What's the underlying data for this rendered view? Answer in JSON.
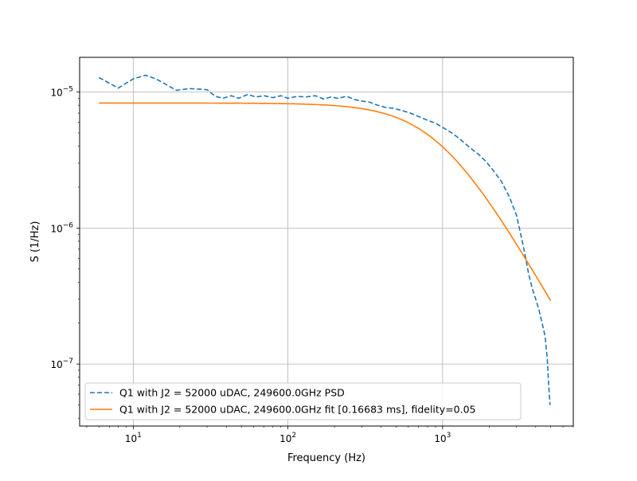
{
  "chart_data": {
    "type": "line",
    "xscale": "log",
    "yscale": "log",
    "xlabel": "Frequency (Hz)",
    "ylabel": "S (1/Hz)",
    "xlim": [
      4.5,
      7000
    ],
    "ylim": [
      3.5e-08,
      1.8e-05
    ],
    "grid": true,
    "legend_position": "lower-left",
    "x_ticks": [
      {
        "value": 10,
        "base": "10",
        "exp": "1"
      },
      {
        "value": 100,
        "base": "10",
        "exp": "2"
      },
      {
        "value": 1000,
        "base": "10",
        "exp": "3"
      }
    ],
    "y_ticks": [
      {
        "value": 1e-07,
        "base": "10",
        "exp": "−7"
      },
      {
        "value": 1e-06,
        "base": "10",
        "exp": "−6"
      },
      {
        "value": 1e-05,
        "base": "10",
        "exp": "−5"
      }
    ],
    "series": [
      {
        "name": "Q1 with J2 = 52000 uDAC, 249600.0GHz PSD",
        "color": "#1f77b4",
        "style": "dashed",
        "points": [
          [
            6,
            1.28e-05
          ],
          [
            8,
            1.07e-05
          ],
          [
            10,
            1.25e-05
          ],
          [
            12,
            1.33e-05
          ],
          [
            14,
            1.25e-05
          ],
          [
            16,
            1.15e-05
          ],
          [
            19,
            1.03e-05
          ],
          [
            23,
            1.06e-05
          ],
          [
            27,
            1.05e-05
          ],
          [
            30,
            1.04e-05
          ],
          [
            34,
            9.3e-06
          ],
          [
            38,
            9e-06
          ],
          [
            43,
            9.4e-06
          ],
          [
            48,
            9e-06
          ],
          [
            55,
            9.6e-06
          ],
          [
            62,
            9.2e-06
          ],
          [
            70,
            9.4e-06
          ],
          [
            80,
            9.1e-06
          ],
          [
            90,
            9.4e-06
          ],
          [
            100,
            9e-06
          ],
          [
            115,
            9.3e-06
          ],
          [
            130,
            9.2e-06
          ],
          [
            150,
            9.4e-06
          ],
          [
            170,
            8.9e-06
          ],
          [
            190,
            9.2e-06
          ],
          [
            210,
            9e-06
          ],
          [
            240,
            9.3e-06
          ],
          [
            270,
            8.8e-06
          ],
          [
            300,
            8.6e-06
          ],
          [
            340,
            8.4e-06
          ],
          [
            380,
            8e-06
          ],
          [
            430,
            7.7e-06
          ],
          [
            480,
            7.6e-06
          ],
          [
            550,
            7.3e-06
          ],
          [
            620,
            7e-06
          ],
          [
            700,
            6.6e-06
          ],
          [
            800,
            6.2e-06
          ],
          [
            900,
            5.9e-06
          ],
          [
            1000,
            5.5e-06
          ],
          [
            1150,
            5e-06
          ],
          [
            1300,
            4.5e-06
          ],
          [
            1500,
            3.9e-06
          ],
          [
            1700,
            3.5e-06
          ],
          [
            1900,
            3.1e-06
          ],
          [
            2100,
            2.7e-06
          ],
          [
            2400,
            2.2e-06
          ],
          [
            2700,
            1.7e-06
          ],
          [
            3000,
            1.25e-06
          ],
          [
            3200,
            9e-07
          ],
          [
            3400,
            6.5e-07
          ],
          [
            3600,
            4.6e-07
          ],
          [
            3800,
            3.6e-07
          ],
          [
            4000,
            3e-07
          ],
          [
            4200,
            2.5e-07
          ],
          [
            4400,
            2e-07
          ],
          [
            4600,
            1.6e-07
          ],
          [
            4750,
            1.1e-07
          ],
          [
            4850,
            7e-08
          ],
          [
            4950,
            5e-08
          ]
        ]
      },
      {
        "name": "Q1 with J2 = 52000 uDAC, 249600.0GHz fit [0.16683 ms], fidelity=0.05",
        "color": "#ff7f0e",
        "style": "solid",
        "model": {
          "type": "lorentzian",
          "amplitude": 8.3e-06,
          "cutoff_hz": 954
        },
        "x_range": [
          6,
          5000
        ]
      }
    ]
  }
}
